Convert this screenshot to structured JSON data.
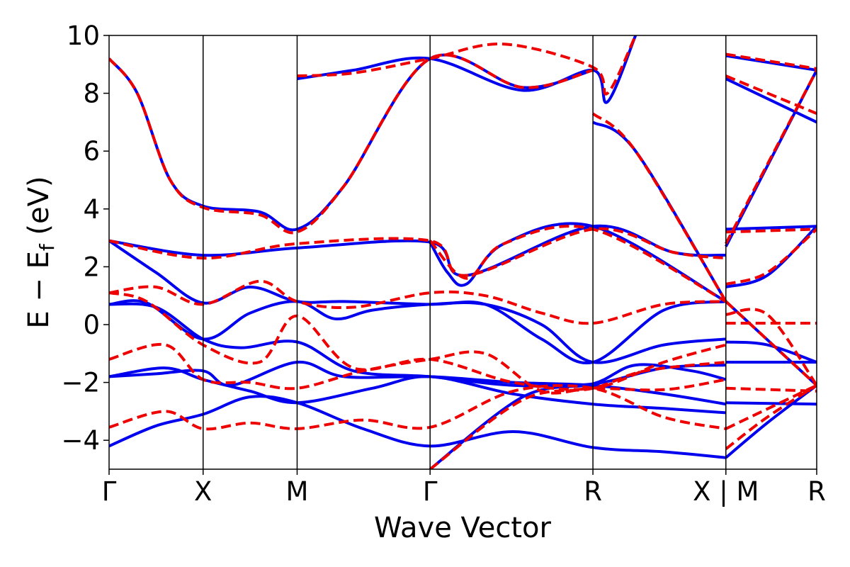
{
  "chart_data": {
    "type": "line",
    "xlabel": "Wave Vector",
    "ylabel": "E − Ef (eV)",
    "ylabel_parts": {
      "main": "E − E",
      "sub": "f",
      "unit": " (eV)"
    },
    "ylim": [
      -5,
      10
    ],
    "xlim": [
      0,
      7.526
    ],
    "y_ticks": [
      -4,
      -2,
      0,
      2,
      4,
      6,
      8,
      10
    ],
    "y_tick_labels": [
      "−4",
      "−2",
      "0",
      "2",
      "4",
      "6",
      "8",
      "10"
    ],
    "k_points": [
      {
        "label": "Γ",
        "x": 0.0
      },
      {
        "label": "X",
        "x": 1.0
      },
      {
        "label": "M",
        "x": 2.0
      },
      {
        "label": "Γ",
        "x": 3.414
      },
      {
        "label": "R",
        "x": 5.146
      },
      {
        "label": "X | M",
        "x": 6.56
      },
      {
        "label": "R",
        "x": 7.526
      }
    ],
    "grid": false,
    "legend": "none",
    "series": [
      {
        "style": "solid",
        "color": "#0000ee",
        "bands": [
          [
            [
              0,
              -4.2
            ],
            [
              0.5,
              -3.5
            ],
            [
              1.0,
              -3.1
            ],
            [
              1.5,
              -2.5
            ],
            [
              2.0,
              -2.7
            ],
            [
              2.7,
              -3.6
            ],
            [
              3.414,
              -4.2
            ],
            [
              4.3,
              -3.7
            ],
            [
              5.146,
              -4.25
            ],
            [
              5.9,
              -4.4
            ],
            [
              6.56,
              -4.6
            ]
          ],
          [
            [
              0,
              -1.8
            ],
            [
              0.6,
              -1.5
            ],
            [
              1.0,
              -1.9
            ],
            [
              1.5,
              -2.3
            ],
            [
              2.0,
              -2.7
            ],
            [
              2.8,
              -2.2
            ],
            [
              3.414,
              -1.8
            ],
            [
              4.3,
              -2.4
            ],
            [
              5.146,
              -2.75
            ],
            [
              5.9,
              -2.9
            ],
            [
              6.56,
              -3.05
            ]
          ],
          [
            [
              0,
              -1.8
            ],
            [
              0.5,
              -1.7
            ],
            [
              1.0,
              -1.6
            ],
            [
              1.3,
              -2.1
            ],
            [
              2.0,
              -1.3
            ],
            [
              2.5,
              -1.8
            ],
            [
              3.414,
              -1.8
            ],
            [
              4.3,
              -2.0
            ],
            [
              5.146,
              -2.1
            ],
            [
              5.9,
              -2.4
            ],
            [
              6.56,
              -2.75
            ]
          ],
          [
            [
              0,
              0.7
            ],
            [
              0.5,
              0.6
            ],
            [
              1.0,
              -0.5
            ],
            [
              1.4,
              -0.8
            ],
            [
              2.0,
              -0.6
            ],
            [
              2.6,
              -1.6
            ],
            [
              3.414,
              -1.8
            ],
            [
              4.3,
              -2.1
            ],
            [
              5.146,
              -2.05
            ],
            [
              5.9,
              -1.5
            ],
            [
              6.56,
              -1.4
            ]
          ],
          [
            [
              0,
              0.7
            ],
            [
              0.4,
              0.75
            ],
            [
              1.0,
              -0.5
            ],
            [
              1.5,
              0.4
            ],
            [
              2.0,
              0.8
            ],
            [
              2.4,
              0.2
            ],
            [
              2.8,
              0.5
            ],
            [
              3.414,
              0.7
            ],
            [
              4.0,
              0.7
            ],
            [
              4.6,
              0.0
            ],
            [
              5.146,
              -1.3
            ],
            [
              5.9,
              -0.7
            ],
            [
              6.56,
              -0.5
            ]
          ],
          [
            [
              0,
              2.9
            ],
            [
              0.5,
              1.8
            ],
            [
              1.0,
              0.75
            ],
            [
              1.5,
              1.3
            ],
            [
              2.0,
              0.8
            ],
            [
              2.5,
              0.8
            ],
            [
              3.414,
              0.7
            ],
            [
              4.0,
              0.7
            ],
            [
              4.6,
              -0.5
            ],
            [
              5.146,
              -1.3
            ],
            [
              5.9,
              0.5
            ],
            [
              6.56,
              0.8
            ]
          ],
          [
            [
              0,
              2.9
            ],
            [
              1.0,
              2.4
            ],
            [
              2.0,
              2.65
            ],
            [
              3.414,
              2.85
            ],
            [
              3.8,
              1.7
            ],
            [
              5.146,
              3.4
            ],
            [
              6.0,
              2.5
            ],
            [
              6.56,
              2.4
            ]
          ],
          [
            [
              0,
              9.2
            ],
            [
              0.3,
              8.0
            ],
            [
              0.65,
              5.0
            ],
            [
              1.0,
              4.1
            ],
            [
              1.6,
              3.9
            ],
            [
              2.0,
              3.3
            ],
            [
              2.5,
              4.8
            ],
            [
              3.414,
              9.2
            ],
            [
              4.4,
              8.2
            ],
            [
              5.146,
              8.8
            ]
          ],
          [
            [
              2.0,
              8.5
            ],
            [
              2.6,
              8.8
            ],
            [
              3.414,
              9.2
            ],
            [
              4.4,
              8.1
            ],
            [
              5.146,
              8.8
            ],
            [
              5.3,
              7.7
            ],
            [
              5.6,
              10.0
            ]
          ],
          [
            [
              3.414,
              2.85
            ],
            [
              3.6,
              1.8
            ],
            [
              3.8,
              1.4
            ],
            [
              4.2,
              2.8
            ],
            [
              5.146,
              3.4
            ],
            [
              6.56,
              0.8
            ]
          ],
          [
            [
              3.414,
              -5.0
            ],
            [
              4.4,
              -2.5
            ],
            [
              5.146,
              -2.05
            ],
            [
              5.6,
              -1.4
            ],
            [
              6.2,
              -1.6
            ],
            [
              6.56,
              -1.9
            ]
          ],
          [
            [
              5.146,
              7.0
            ],
            [
              5.6,
              6.0
            ],
            [
              6.56,
              0.8
            ]
          ],
          [
            [
              6.56,
              -4.6
            ],
            [
              7.0,
              -3.4
            ],
            [
              7.526,
              -2.1
            ]
          ],
          [
            [
              6.56,
              -2.7
            ],
            [
              7.526,
              -2.75
            ]
          ],
          [
            [
              6.56,
              -1.3
            ],
            [
              7.526,
              -1.3
            ]
          ],
          [
            [
              6.56,
              -0.6
            ],
            [
              7.0,
              -0.7
            ],
            [
              7.526,
              -1.3
            ]
          ],
          [
            [
              6.56,
              0.8
            ],
            [
              7.526,
              -2.1
            ]
          ],
          [
            [
              6.56,
              1.3
            ],
            [
              7.0,
              1.7
            ],
            [
              7.526,
              3.4
            ]
          ],
          [
            [
              6.56,
              2.7
            ],
            [
              7.526,
              8.8
            ]
          ],
          [
            [
              6.56,
              3.3
            ],
            [
              7.526,
              3.4
            ]
          ],
          [
            [
              6.56,
              8.5
            ],
            [
              7.526,
              7.0
            ]
          ],
          [
            [
              6.56,
              9.3
            ],
            [
              7.526,
              8.8
            ]
          ]
        ]
      },
      {
        "style": "dashed",
        "color": "#ee0000",
        "bands": [
          [
            [
              0,
              -3.55
            ],
            [
              0.6,
              -3.0
            ],
            [
              1.0,
              -3.6
            ],
            [
              1.5,
              -3.4
            ],
            [
              2.0,
              -3.6
            ],
            [
              2.7,
              -3.3
            ],
            [
              3.414,
              -3.55
            ],
            [
              4.3,
              -2.3
            ],
            [
              5.146,
              -2.2
            ],
            [
              5.9,
              -3.2
            ],
            [
              6.56,
              -3.6
            ]
          ],
          [
            [
              0,
              -1.2
            ],
            [
              0.6,
              -0.7
            ],
            [
              1.0,
              -1.9
            ],
            [
              1.5,
              -2.0
            ],
            [
              2.0,
              -2.2
            ],
            [
              2.7,
              -1.6
            ],
            [
              3.414,
              -1.2
            ],
            [
              4.0,
              -1.0
            ],
            [
              4.6,
              -2.3
            ],
            [
              5.146,
              -2.2
            ],
            [
              5.9,
              -2.25
            ],
            [
              6.56,
              -1.9
            ]
          ],
          [
            [
              0,
              1.1
            ],
            [
              0.5,
              1.3
            ],
            [
              1.0,
              0.7
            ],
            [
              1.6,
              1.5
            ],
            [
              2.0,
              0.8
            ],
            [
              2.6,
              0.6
            ],
            [
              3.414,
              1.1
            ],
            [
              4.0,
              1.0
            ],
            [
              4.6,
              0.4
            ],
            [
              5.146,
              0.05
            ],
            [
              5.9,
              0.7
            ],
            [
              6.56,
              0.8
            ]
          ],
          [
            [
              0,
              1.1
            ],
            [
              0.4,
              0.8
            ],
            [
              1.0,
              -0.7
            ],
            [
              1.6,
              -1.3
            ],
            [
              2.0,
              0.3
            ],
            [
              2.6,
              -1.5
            ],
            [
              3.414,
              -1.2
            ],
            [
              4.3,
              -2.0
            ],
            [
              5.146,
              -2.2
            ],
            [
              5.9,
              -1.3
            ],
            [
              6.56,
              -0.7
            ]
          ],
          [
            [
              0,
              2.9
            ],
            [
              1.0,
              2.3
            ],
            [
              2.0,
              2.8
            ],
            [
              3.414,
              2.9
            ],
            [
              3.8,
              1.7
            ],
            [
              5.146,
              3.3
            ],
            [
              6.0,
              2.5
            ],
            [
              6.56,
              2.3
            ]
          ],
          [
            [
              0,
              9.2
            ],
            [
              0.3,
              8.0
            ],
            [
              0.65,
              5.0
            ],
            [
              1.0,
              4.05
            ],
            [
              1.6,
              3.8
            ],
            [
              2.0,
              3.2
            ],
            [
              2.5,
              4.8
            ],
            [
              3.414,
              9.2
            ],
            [
              4.4,
              8.2
            ],
            [
              5.146,
              8.8
            ]
          ],
          [
            [
              2.0,
              8.6
            ],
            [
              2.6,
              8.7
            ],
            [
              3.414,
              9.2
            ],
            [
              4.2,
              9.7
            ],
            [
              5.146,
              8.9
            ],
            [
              5.3,
              8.0
            ],
            [
              5.6,
              10.0
            ]
          ],
          [
            [
              3.414,
              2.9
            ],
            [
              3.8,
              1.6
            ],
            [
              4.2,
              2.8
            ],
            [
              5.146,
              3.3
            ],
            [
              6.56,
              0.8
            ]
          ],
          [
            [
              3.414,
              -5.0
            ],
            [
              4.4,
              -2.6
            ],
            [
              5.146,
              -2.2
            ],
            [
              5.7,
              -1.6
            ],
            [
              6.56,
              -1.3
            ]
          ],
          [
            [
              5.146,
              7.3
            ],
            [
              5.6,
              6.0
            ],
            [
              6.56,
              0.8
            ]
          ],
          [
            [
              6.56,
              -4.3
            ],
            [
              7.0,
              -3.2
            ],
            [
              7.526,
              -2.1
            ]
          ],
          [
            [
              6.56,
              -3.6
            ],
            [
              7.526,
              -2.1
            ]
          ],
          [
            [
              6.56,
              -2.2
            ],
            [
              7.526,
              -2.3
            ]
          ],
          [
            [
              6.56,
              0.05
            ],
            [
              7.526,
              0.05
            ]
          ],
          [
            [
              6.56,
              0.35
            ],
            [
              7.0,
              0.35
            ],
            [
              7.526,
              -2.1
            ]
          ],
          [
            [
              6.56,
              0.8
            ],
            [
              7.526,
              -2.1
            ]
          ],
          [
            [
              6.56,
              1.4
            ],
            [
              7.0,
              1.8
            ],
            [
              7.526,
              3.3
            ]
          ],
          [
            [
              6.56,
              2.8
            ],
            [
              7.526,
              8.8
            ]
          ],
          [
            [
              6.56,
              3.2
            ],
            [
              7.526,
              3.3
            ]
          ],
          [
            [
              6.56,
              8.6
            ],
            [
              7.526,
              7.3
            ]
          ],
          [
            [
              6.56,
              9.35
            ],
            [
              7.526,
              8.85
            ]
          ]
        ]
      }
    ]
  }
}
